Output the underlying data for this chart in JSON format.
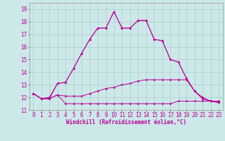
{
  "xlabel": "Windchill (Refroidissement éolien,°C)",
  "background_color": "#cce8e8",
  "grid_color": "#aacccc",
  "line_color": "#bb0099",
  "x_values": [
    0,
    1,
    2,
    3,
    4,
    5,
    6,
    7,
    8,
    9,
    10,
    11,
    12,
    13,
    14,
    15,
    16,
    17,
    18,
    19,
    20,
    21,
    22,
    23
  ],
  "line1": [
    12.3,
    11.9,
    11.9,
    12.2,
    11.5,
    11.5,
    11.5,
    11.5,
    11.5,
    11.5,
    11.5,
    11.5,
    11.5,
    11.5,
    11.5,
    11.5,
    11.5,
    11.5,
    11.7,
    11.7,
    11.7,
    11.7,
    11.7,
    11.7
  ],
  "line2": [
    12.3,
    11.9,
    11.9,
    12.2,
    12.1,
    12.1,
    12.1,
    12.3,
    12.5,
    12.7,
    12.8,
    13.0,
    13.1,
    13.3,
    13.4,
    13.4,
    13.4,
    13.4,
    13.4,
    13.4,
    12.5,
    11.9,
    11.7,
    11.6
  ],
  "line3": [
    12.3,
    11.9,
    11.9,
    13.1,
    13.2,
    14.3,
    15.5,
    16.6,
    17.5,
    17.5,
    18.8,
    17.5,
    17.5,
    18.1,
    18.1,
    16.6,
    16.5,
    15.0,
    14.8,
    13.5,
    12.5,
    11.9,
    11.7,
    11.6
  ],
  "line4": [
    12.3,
    11.9,
    12.0,
    13.1,
    13.2,
    14.3,
    15.5,
    16.6,
    17.5,
    17.5,
    18.8,
    17.5,
    17.5,
    18.1,
    18.1,
    16.6,
    16.5,
    15.0,
    14.8,
    13.5,
    12.5,
    12.0,
    11.7,
    11.6
  ],
  "ylim": [
    11.0,
    19.5
  ],
  "xlim": [
    -0.5,
    23.5
  ],
  "yticks": [
    11,
    12,
    13,
    14,
    15,
    16,
    17,
    18,
    19
  ],
  "xticks": [
    0,
    1,
    2,
    3,
    4,
    5,
    6,
    7,
    8,
    9,
    10,
    11,
    12,
    13,
    14,
    15,
    16,
    17,
    18,
    19,
    20,
    21,
    22,
    23
  ],
  "label_fontsize": 5.5,
  "tick_fontsize": 5.5
}
